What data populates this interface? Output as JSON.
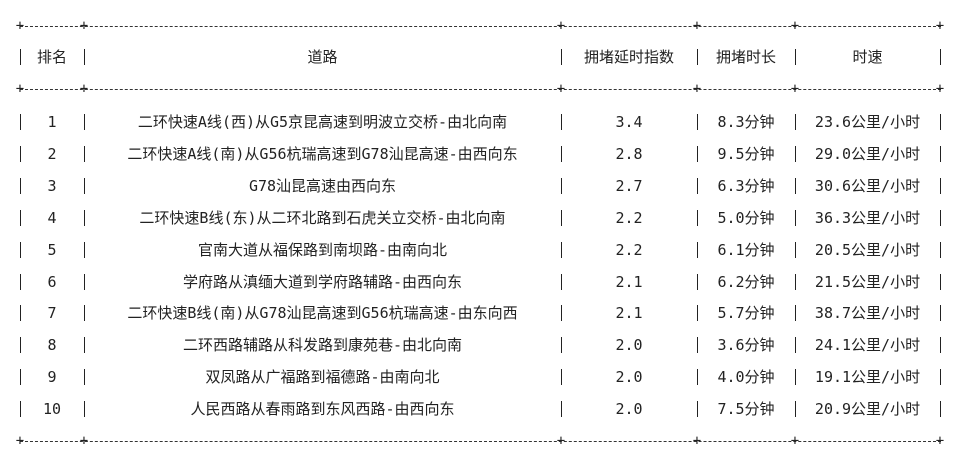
{
  "table": {
    "headers": [
      "排名",
      "道路",
      "拥堵延时指数",
      "拥堵时长",
      "时速"
    ],
    "rows": [
      [
        "1",
        "二环快速A线(西)从G5京昆高速到明波立交桥-由北向南",
        "3.4",
        "8.3分钟",
        "23.6公里/小时"
      ],
      [
        "2",
        "二环快速A线(南)从G56杭瑞高速到G78汕昆高速-由西向东",
        "2.8",
        "9.5分钟",
        "29.0公里/小时"
      ],
      [
        "3",
        "G78汕昆高速由西向东",
        "2.7",
        "6.3分钟",
        "30.6公里/小时"
      ],
      [
        "4",
        "二环快速B线(东)从二环北路到石虎关立交桥-由北向南",
        "2.2",
        "5.0分钟",
        "36.3公里/小时"
      ],
      [
        "5",
        "官南大道从福保路到南坝路-由南向北",
        "2.2",
        "6.1分钟",
        "20.5公里/小时"
      ],
      [
        "6",
        "学府路从滇缅大道到学府路辅路-由西向东",
        "2.1",
        "6.2分钟",
        "21.5公里/小时"
      ],
      [
        "7",
        "二环快速B线(南)从G78汕昆高速到G56杭瑞高速-由东向西",
        "2.1",
        "5.7分钟",
        "38.7公里/小时"
      ],
      [
        "8",
        "二环西路辅路从科发路到康苑巷-由北向南",
        "2.0",
        "3.6分钟",
        "24.1公里/小时"
      ],
      [
        "9",
        "双凤路从广福路到福德路-由南向北",
        "2.0",
        "4.0分钟",
        "19.1公里/小时"
      ],
      [
        "10",
        "人民西路从春雨路到东风西路-由西向东",
        "2.0",
        "7.5分钟",
        "20.9公里/小时"
      ]
    ]
  }
}
